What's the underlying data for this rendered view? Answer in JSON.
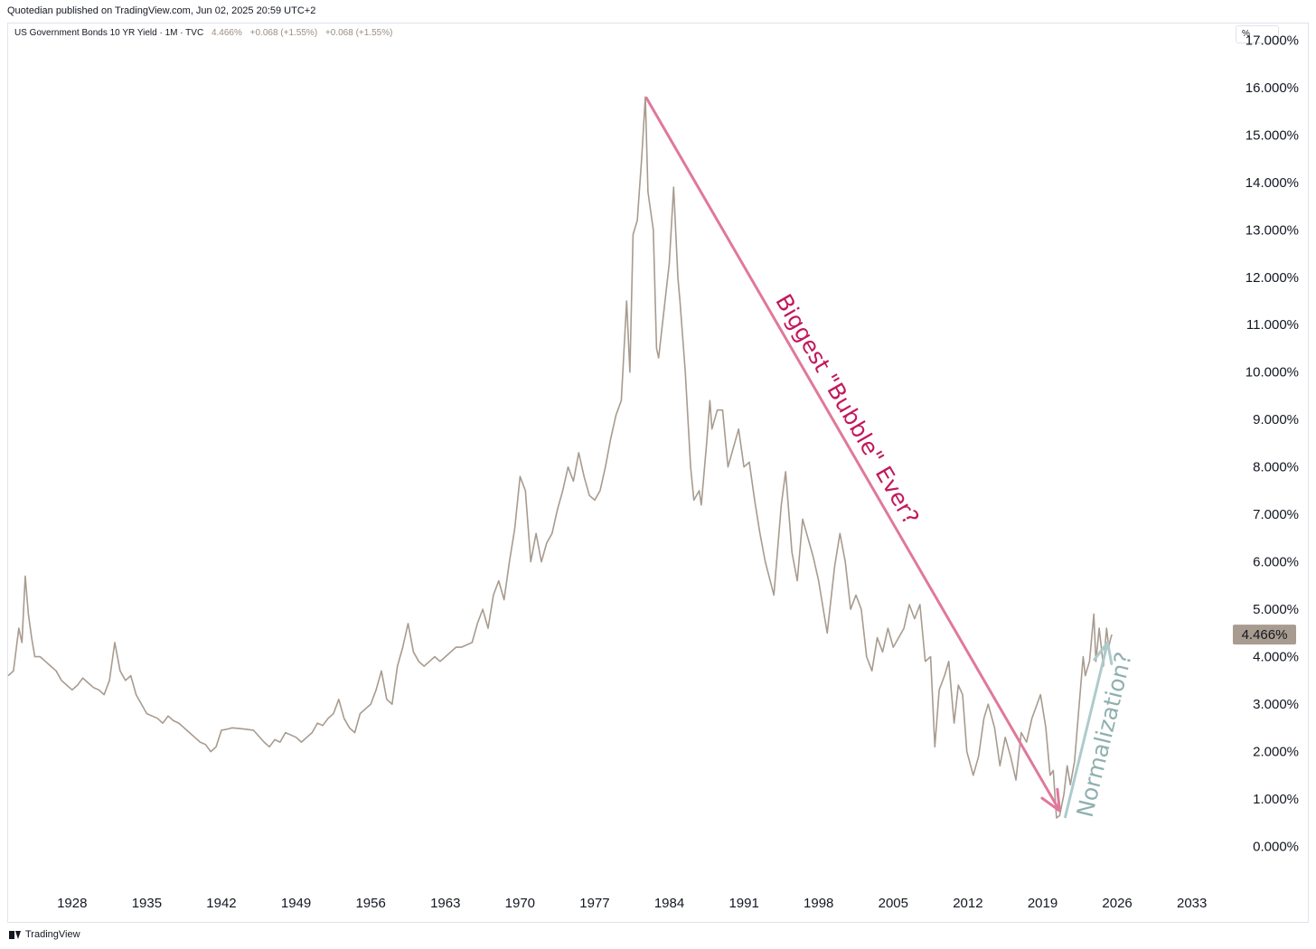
{
  "header": {
    "publisher_line": "Quotedian published on TradingView.com, Jun 02, 2025 20:59 UTC+2"
  },
  "legend": {
    "symbol": "US Government Bonds 10 YR Yield · 1M · TVC",
    "values": [
      "4.466%",
      "+0.068 (+1.55%)",
      "+0.068 (+1.55%)"
    ]
  },
  "unit_label": "%",
  "footer": {
    "brand": "TradingView",
    "icon": "tradingview-logo-icon"
  },
  "colors": {
    "series": "#a89b8f",
    "price_tag_bg": "#a89b8f",
    "bubble_arrow": "#e0789a",
    "bubble_text": "#c2185b",
    "normalization_arrow": "#aecbcb",
    "normalization_text": "#8fb0ae"
  },
  "chart_data": {
    "type": "line",
    "title": "",
    "xlabel": "",
    "ylabel": "",
    "xlim": [
      1922.0,
      2036.5
    ],
    "ylim": [
      -0.6,
      17.35
    ],
    "x_ticks": [
      "1928",
      "1935",
      "1942",
      "1949",
      "1956",
      "1963",
      "1970",
      "1977",
      "1984",
      "1991",
      "1998",
      "2005",
      "2012",
      "2019",
      "2026",
      "2033"
    ],
    "y_ticks": [
      "0.000%",
      "1.000%",
      "2.000%",
      "3.000%",
      "4.000%",
      "5.000%",
      "6.000%",
      "7.000%",
      "8.000%",
      "9.000%",
      "10.000%",
      "11.000%",
      "12.000%",
      "13.000%",
      "14.000%",
      "15.000%",
      "16.000%",
      "17.000%"
    ],
    "last_price": {
      "label": "4.466%",
      "value": 4.466
    },
    "series": [
      {
        "points": [
          [
            1922.0,
            3.6
          ],
          [
            1922.5,
            3.7
          ],
          [
            1923.0,
            4.6
          ],
          [
            1923.3,
            4.3
          ],
          [
            1923.6,
            5.7
          ],
          [
            1923.9,
            4.9
          ],
          [
            1924.2,
            4.4
          ],
          [
            1924.5,
            4.0
          ],
          [
            1925.0,
            4.0
          ],
          [
            1925.5,
            3.9
          ],
          [
            1926.0,
            3.8
          ],
          [
            1926.5,
            3.7
          ],
          [
            1927.0,
            3.5
          ],
          [
            1927.5,
            3.4
          ],
          [
            1928.0,
            3.3
          ],
          [
            1928.5,
            3.4
          ],
          [
            1929.0,
            3.55
          ],
          [
            1929.5,
            3.45
          ],
          [
            1930.0,
            3.35
          ],
          [
            1930.5,
            3.3
          ],
          [
            1931.0,
            3.2
          ],
          [
            1931.5,
            3.5
          ],
          [
            1932.0,
            4.3
          ],
          [
            1932.5,
            3.7
          ],
          [
            1933.0,
            3.5
          ],
          [
            1933.5,
            3.6
          ],
          [
            1934.0,
            3.2
          ],
          [
            1934.5,
            3.0
          ],
          [
            1935.0,
            2.8
          ],
          [
            1935.5,
            2.75
          ],
          [
            1936.0,
            2.7
          ],
          [
            1936.5,
            2.6
          ],
          [
            1937.0,
            2.75
          ],
          [
            1937.5,
            2.65
          ],
          [
            1938.0,
            2.6
          ],
          [
            1938.5,
            2.5
          ],
          [
            1939.0,
            2.4
          ],
          [
            1939.5,
            2.3
          ],
          [
            1940.0,
            2.2
          ],
          [
            1940.5,
            2.15
          ],
          [
            1941.0,
            2.0
          ],
          [
            1941.5,
            2.1
          ],
          [
            1942.0,
            2.45
          ],
          [
            1942.5,
            2.47
          ],
          [
            1943.0,
            2.5
          ],
          [
            1944.0,
            2.48
          ],
          [
            1945.0,
            2.45
          ],
          [
            1946.0,
            2.2
          ],
          [
            1946.5,
            2.1
          ],
          [
            1947.0,
            2.25
          ],
          [
            1947.5,
            2.2
          ],
          [
            1948.0,
            2.4
          ],
          [
            1948.5,
            2.35
          ],
          [
            1949.0,
            2.3
          ],
          [
            1949.5,
            2.2
          ],
          [
            1950.0,
            2.3
          ],
          [
            1950.5,
            2.4
          ],
          [
            1951.0,
            2.6
          ],
          [
            1951.5,
            2.55
          ],
          [
            1952.0,
            2.7
          ],
          [
            1952.5,
            2.8
          ],
          [
            1953.0,
            3.1
          ],
          [
            1953.5,
            2.7
          ],
          [
            1954.0,
            2.5
          ],
          [
            1954.5,
            2.4
          ],
          [
            1955.0,
            2.8
          ],
          [
            1955.5,
            2.9
          ],
          [
            1956.0,
            3.0
          ],
          [
            1956.5,
            3.3
          ],
          [
            1957.0,
            3.7
          ],
          [
            1957.5,
            3.1
          ],
          [
            1958.0,
            3.0
          ],
          [
            1958.5,
            3.8
          ],
          [
            1959.0,
            4.2
          ],
          [
            1959.5,
            4.7
          ],
          [
            1960.0,
            4.1
          ],
          [
            1960.5,
            3.9
          ],
          [
            1961.0,
            3.8
          ],
          [
            1961.5,
            3.9
          ],
          [
            1962.0,
            4.0
          ],
          [
            1962.5,
            3.9
          ],
          [
            1963.0,
            4.0
          ],
          [
            1963.5,
            4.1
          ],
          [
            1964.0,
            4.2
          ],
          [
            1964.5,
            4.2
          ],
          [
            1965.0,
            4.25
          ],
          [
            1965.5,
            4.3
          ],
          [
            1966.0,
            4.7
          ],
          [
            1966.5,
            5.0
          ],
          [
            1967.0,
            4.6
          ],
          [
            1967.5,
            5.3
          ],
          [
            1968.0,
            5.6
          ],
          [
            1968.5,
            5.2
          ],
          [
            1969.0,
            6.0
          ],
          [
            1969.5,
            6.7
          ],
          [
            1970.0,
            7.8
          ],
          [
            1970.5,
            7.5
          ],
          [
            1971.0,
            6.0
          ],
          [
            1971.5,
            6.6
          ],
          [
            1972.0,
            6.0
          ],
          [
            1972.5,
            6.4
          ],
          [
            1973.0,
            6.6
          ],
          [
            1973.5,
            7.1
          ],
          [
            1974.0,
            7.5
          ],
          [
            1974.5,
            8.0
          ],
          [
            1975.0,
            7.7
          ],
          [
            1975.5,
            8.3
          ],
          [
            1976.0,
            7.8
          ],
          [
            1976.5,
            7.4
          ],
          [
            1977.0,
            7.3
          ],
          [
            1977.5,
            7.5
          ],
          [
            1978.0,
            8.0
          ],
          [
            1978.5,
            8.6
          ],
          [
            1979.0,
            9.1
          ],
          [
            1979.5,
            9.4
          ],
          [
            1980.0,
            11.5
          ],
          [
            1980.3,
            10.0
          ],
          [
            1980.6,
            12.9
          ],
          [
            1981.0,
            13.2
          ],
          [
            1981.4,
            14.5
          ],
          [
            1981.75,
            15.8
          ],
          [
            1982.0,
            13.8
          ],
          [
            1982.5,
            13.0
          ],
          [
            1982.8,
            10.5
          ],
          [
            1983.0,
            10.3
          ],
          [
            1983.5,
            11.3
          ],
          [
            1984.0,
            12.3
          ],
          [
            1984.4,
            13.9
          ],
          [
            1984.8,
            12.0
          ],
          [
            1985.0,
            11.5
          ],
          [
            1985.5,
            10.0
          ],
          [
            1986.0,
            8.0
          ],
          [
            1986.3,
            7.3
          ],
          [
            1986.8,
            7.5
          ],
          [
            1987.0,
            7.2
          ],
          [
            1987.5,
            8.5
          ],
          [
            1987.8,
            9.4
          ],
          [
            1988.0,
            8.8
          ],
          [
            1988.5,
            9.2
          ],
          [
            1989.0,
            9.2
          ],
          [
            1989.5,
            8.0
          ],
          [
            1990.0,
            8.4
          ],
          [
            1990.5,
            8.8
          ],
          [
            1991.0,
            8.0
          ],
          [
            1991.5,
            8.1
          ],
          [
            1992.0,
            7.3
          ],
          [
            1992.5,
            6.6
          ],
          [
            1993.0,
            6.0
          ],
          [
            1993.8,
            5.3
          ],
          [
            1994.5,
            7.2
          ],
          [
            1994.9,
            7.9
          ],
          [
            1995.5,
            6.2
          ],
          [
            1996.0,
            5.6
          ],
          [
            1996.5,
            6.9
          ],
          [
            1997.0,
            6.5
          ],
          [
            1997.5,
            6.1
          ],
          [
            1998.0,
            5.6
          ],
          [
            1998.8,
            4.5
          ],
          [
            1999.5,
            5.9
          ],
          [
            2000.0,
            6.6
          ],
          [
            2000.5,
            6.0
          ],
          [
            2001.0,
            5.0
          ],
          [
            2001.5,
            5.3
          ],
          [
            2002.0,
            5.0
          ],
          [
            2002.5,
            4.0
          ],
          [
            2003.0,
            3.7
          ],
          [
            2003.5,
            4.4
          ],
          [
            2004.0,
            4.1
          ],
          [
            2004.5,
            4.6
          ],
          [
            2005.0,
            4.2
          ],
          [
            2005.5,
            4.4
          ],
          [
            2006.0,
            4.6
          ],
          [
            2006.5,
            5.1
          ],
          [
            2007.0,
            4.8
          ],
          [
            2007.5,
            5.1
          ],
          [
            2008.0,
            3.9
          ],
          [
            2008.5,
            4.0
          ],
          [
            2008.9,
            2.1
          ],
          [
            2009.3,
            3.3
          ],
          [
            2009.8,
            3.6
          ],
          [
            2010.2,
            3.9
          ],
          [
            2010.7,
            2.6
          ],
          [
            2011.1,
            3.4
          ],
          [
            2011.5,
            3.2
          ],
          [
            2011.9,
            2.0
          ],
          [
            2012.5,
            1.5
          ],
          [
            2013.0,
            1.9
          ],
          [
            2013.5,
            2.7
          ],
          [
            2013.9,
            3.0
          ],
          [
            2014.5,
            2.5
          ],
          [
            2015.0,
            1.7
          ],
          [
            2015.5,
            2.3
          ],
          [
            2016.0,
            1.9
          ],
          [
            2016.5,
            1.4
          ],
          [
            2017.0,
            2.4
          ],
          [
            2017.5,
            2.2
          ],
          [
            2018.0,
            2.7
          ],
          [
            2018.8,
            3.2
          ],
          [
            2019.3,
            2.5
          ],
          [
            2019.7,
            1.5
          ],
          [
            2020.0,
            1.6
          ],
          [
            2020.3,
            0.6
          ],
          [
            2020.6,
            0.65
          ],
          [
            2021.0,
            1.1
          ],
          [
            2021.3,
            1.7
          ],
          [
            2021.6,
            1.3
          ],
          [
            2022.0,
            1.8
          ],
          [
            2022.4,
            2.9
          ],
          [
            2022.8,
            4.0
          ],
          [
            2023.0,
            3.6
          ],
          [
            2023.4,
            3.9
          ],
          [
            2023.8,
            4.9
          ],
          [
            2024.0,
            3.9
          ],
          [
            2024.3,
            4.6
          ],
          [
            2024.7,
            3.8
          ],
          [
            2025.0,
            4.6
          ],
          [
            2025.2,
            4.2
          ],
          [
            2025.4,
            4.4
          ],
          [
            2025.5,
            4.466
          ]
        ]
      }
    ],
    "annotations": [
      {
        "text": "Biggest \"Bubble\" Ever?",
        "type": "arrow",
        "from": [
          1981.8,
          15.8
        ],
        "to": [
          2020.6,
          0.75
        ]
      },
      {
        "text": "Normalization?",
        "type": "arrow",
        "from": [
          2021.1,
          0.6
        ],
        "to": [
          2025.1,
          4.3
        ]
      }
    ]
  }
}
